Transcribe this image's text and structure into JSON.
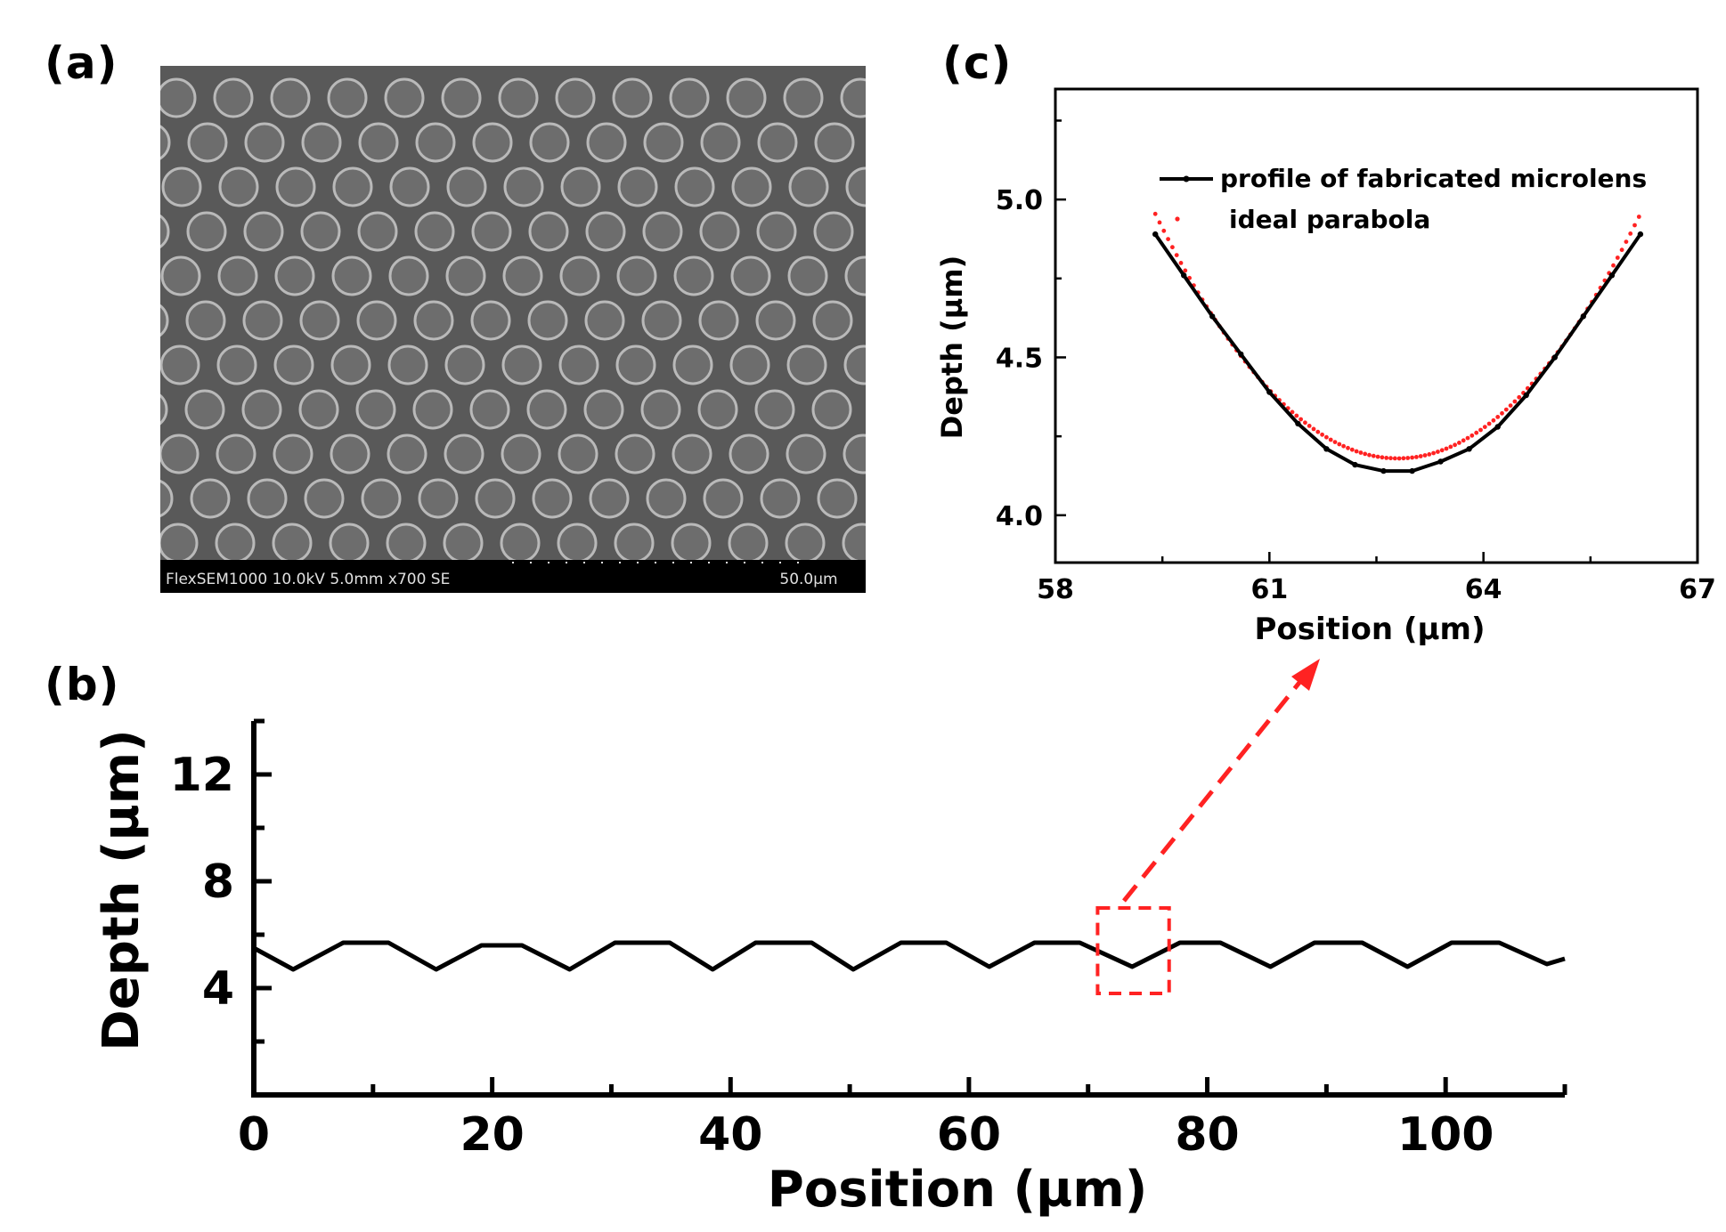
{
  "panels": {
    "a": {
      "label": "(a)"
    },
    "b": {
      "label": "(b)"
    },
    "c": {
      "label": "(c)"
    }
  },
  "sem_image": {
    "databar_text": "FlexSEM1000 10.0kV 5.0mm x700 SE",
    "scale_text": "50.0µm"
  },
  "colors": {
    "profile": "#000000",
    "parabola": "#ff2222",
    "zoom_box": "#ff2222",
    "sem_background": "#595959"
  },
  "chart_data": [
    {
      "panel": "b",
      "type": "line",
      "title": "",
      "xlabel": "Position (µm)",
      "ylabel": "Depth (µm)",
      "xlim": [
        0,
        110
      ],
      "ylim": [
        0,
        14
      ],
      "x_ticks": [
        0,
        20,
        40,
        60,
        80,
        100
      ],
      "y_ticks": [
        4,
        8,
        12
      ],
      "x": [
        0,
        3.3,
        7.5,
        11.3,
        15.3,
        19.1,
        22.5,
        26.5,
        30.3,
        34.9,
        38.5,
        42.1,
        46.8,
        50.3,
        54.3,
        58.1,
        61.7,
        65.5,
        69.3,
        73.7,
        77.7,
        81.1,
        85.3,
        89.0,
        93.0,
        96.8,
        100.5,
        104.5,
        108.5,
        110
      ],
      "series": [
        {
          "values": [
            5.5,
            4.7,
            5.7,
            5.7,
            4.7,
            5.6,
            5.6,
            4.7,
            5.7,
            5.7,
            4.7,
            5.7,
            5.7,
            4.7,
            5.7,
            5.7,
            4.8,
            5.7,
            5.7,
            4.8,
            5.7,
            5.7,
            4.8,
            5.7,
            5.7,
            4.8,
            5.7,
            5.7,
            4.9,
            5.1
          ]
        }
      ],
      "highlight_box": {
        "x_range": [
          70.8,
          76.8
        ],
        "y_range": [
          3.8,
          7.0
        ]
      }
    },
    {
      "panel": "c",
      "type": "line",
      "title": "",
      "xlabel": "Position (µm)",
      "ylabel": "Depth (µm)",
      "xlim": [
        58,
        67
      ],
      "ylim": [
        3.85,
        5.35
      ],
      "x_ticks": [
        58,
        61,
        64,
        67
      ],
      "y_ticks": [
        4.0,
        4.5,
        5.0
      ],
      "legend": {
        "position": "top-right"
      },
      "series": [
        {
          "name": "profile of fabricated microlens",
          "style": "line-with-markers",
          "x": [
            59.4,
            59.8,
            60.2,
            60.6,
            61.0,
            61.4,
            61.8,
            62.2,
            62.6,
            63.0,
            63.4,
            63.8,
            64.2,
            64.6,
            65.0,
            65.4,
            65.8,
            66.2
          ],
          "values": [
            4.89,
            4.76,
            4.63,
            4.51,
            4.39,
            4.29,
            4.21,
            4.16,
            4.14,
            4.14,
            4.17,
            4.21,
            4.28,
            4.38,
            4.5,
            4.63,
            4.76,
            4.89
          ]
        },
        {
          "name": "ideal parabola",
          "style": "dots",
          "vertex": [
            62.8,
            4.18
          ],
          "coefficient": 0.067,
          "x_range": [
            59.4,
            66.2
          ]
        }
      ]
    }
  ]
}
